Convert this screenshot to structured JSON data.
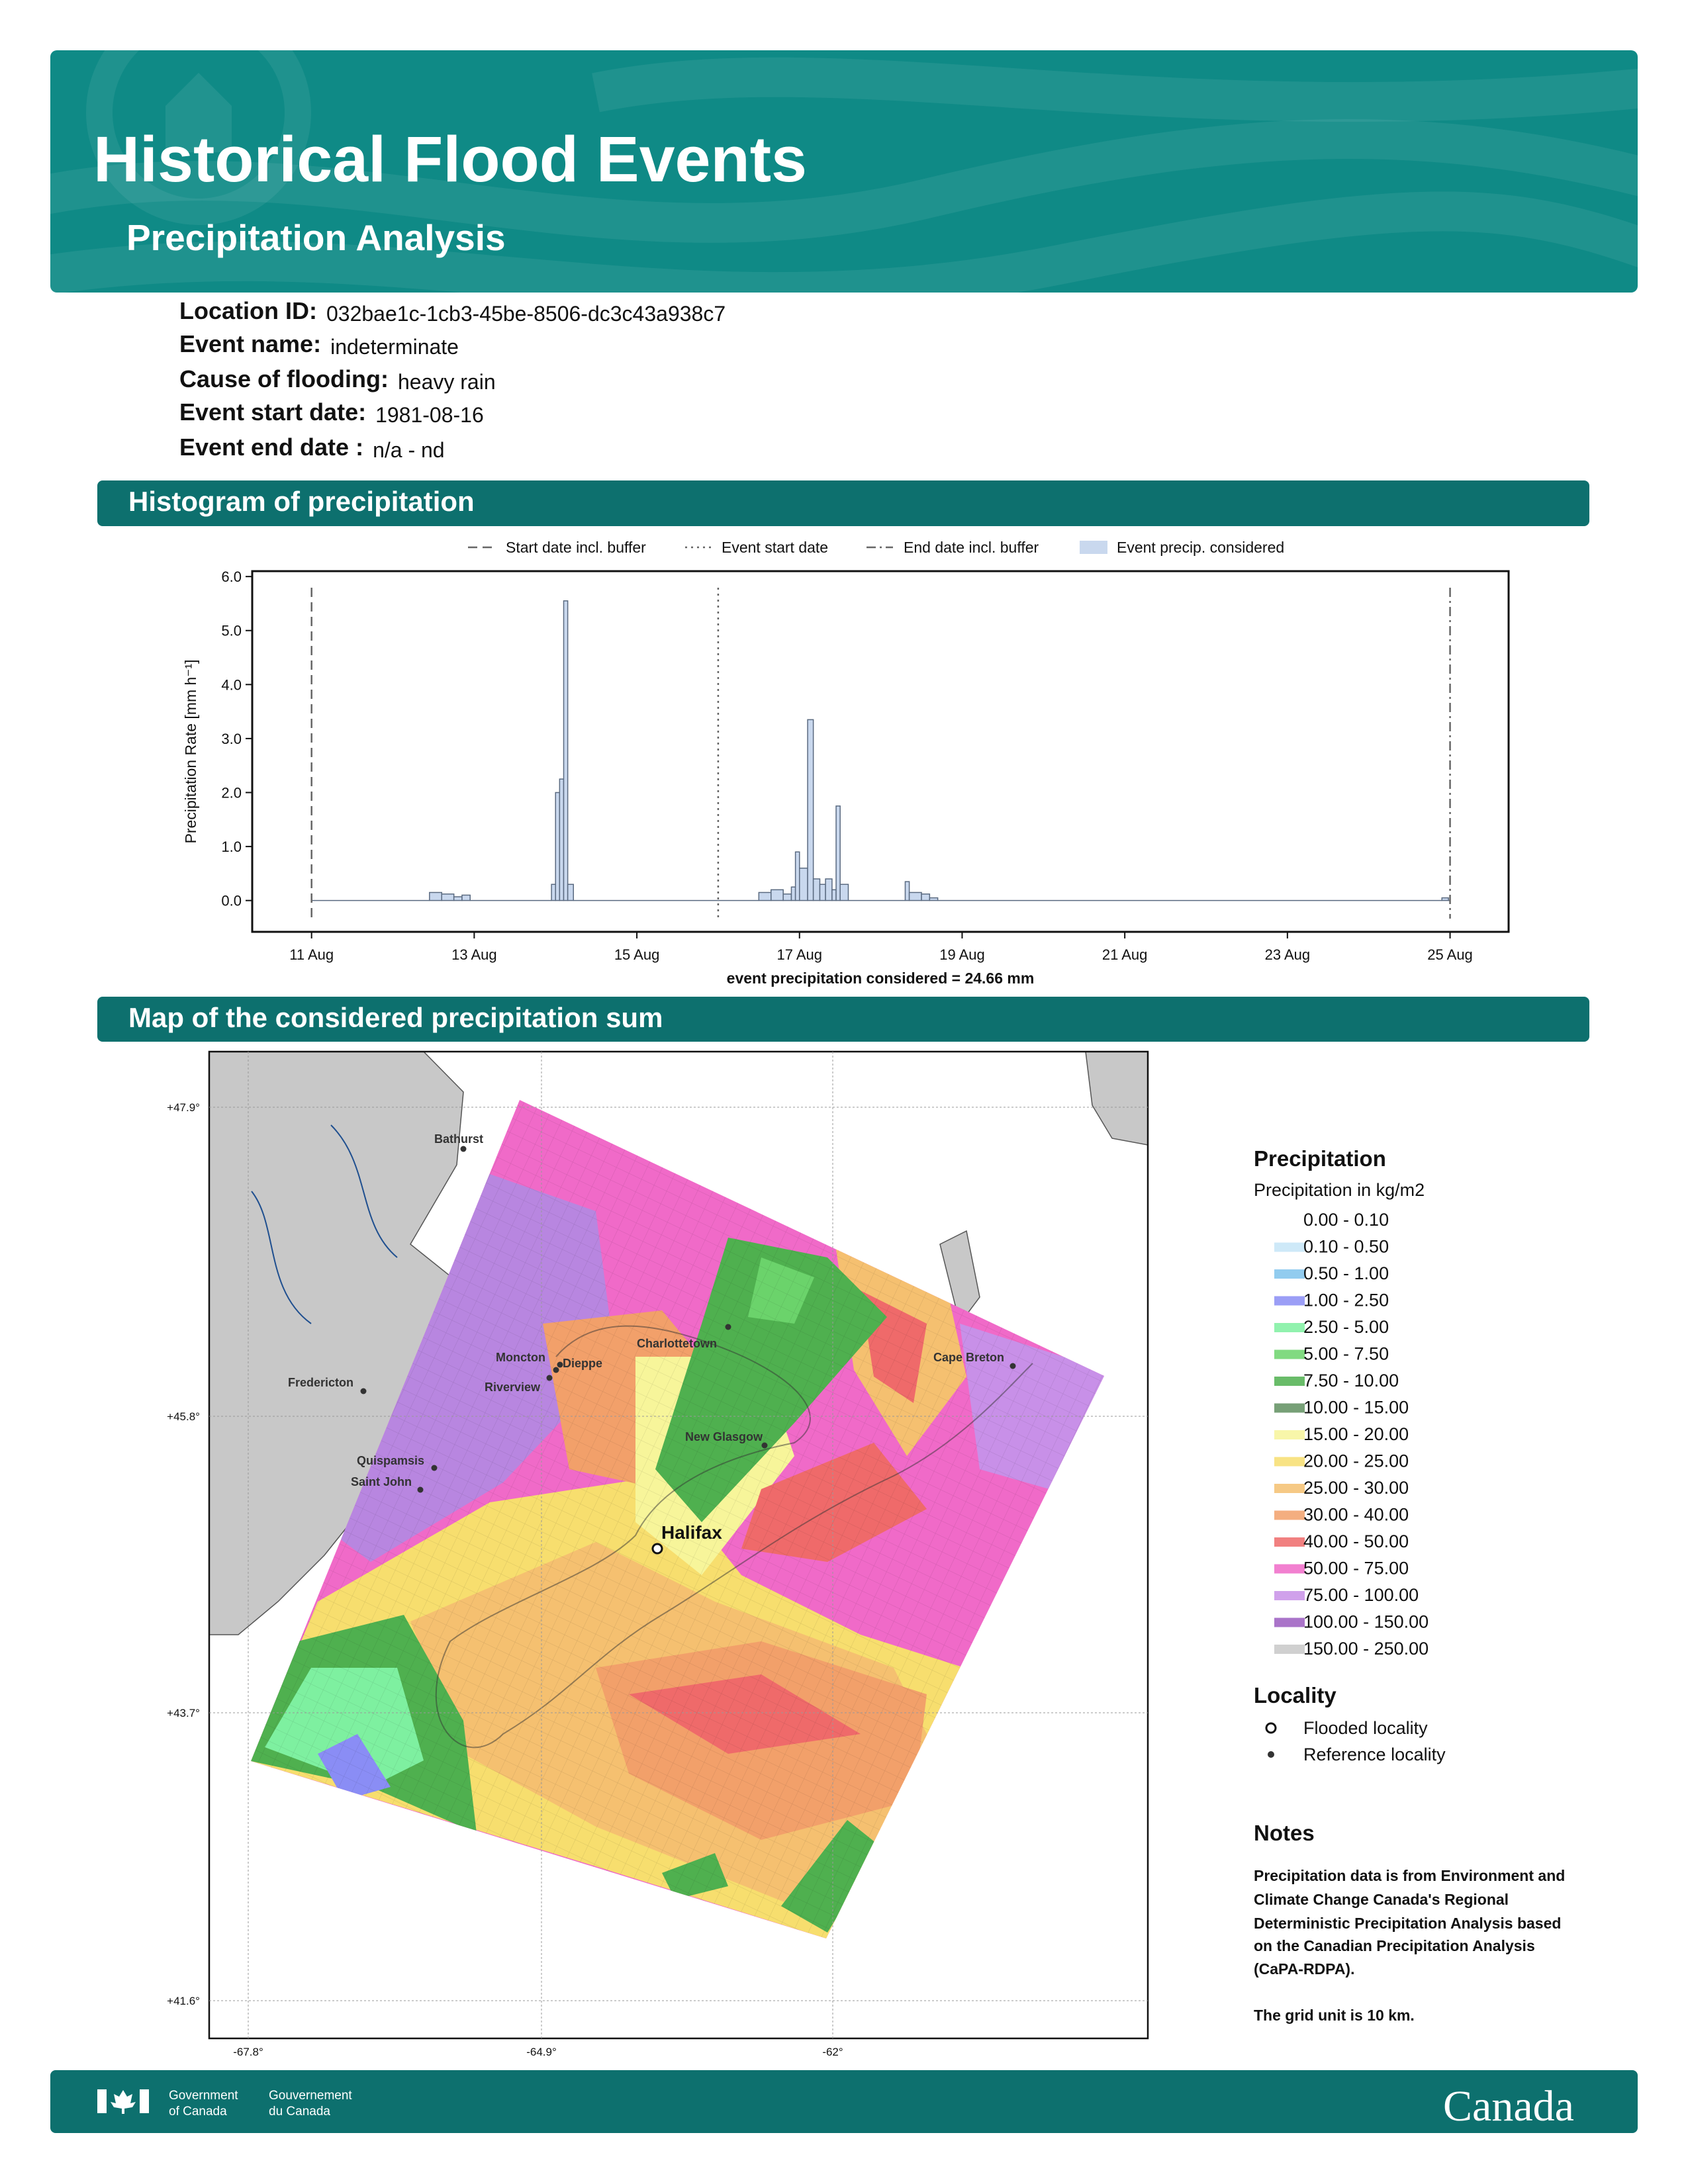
{
  "header": {
    "title": "Historical Flood Events",
    "subtitle": "Precipitation Analysis"
  },
  "event_info": [
    {
      "label": "Location ID:",
      "value": "032bae1c-1cb3-45be-8506-dc3c43a938c7"
    },
    {
      "label": "Event name:",
      "value": "indeterminate"
    },
    {
      "label": "Cause of flooding:",
      "value": "heavy rain"
    },
    {
      "label": "Event start date:",
      "value": "1981-08-16"
    },
    {
      "label": "Event end date :",
      "value": "n/a - nd"
    }
  ],
  "sections": [
    "Histogram of precipitation",
    "Map of the considered precipitation sum"
  ],
  "chart_data": {
    "type": "histogram",
    "ylabel": "Precipitation Rate [mm h⁻¹]",
    "xlabel": "event precipitation considered = 24.66 mm",
    "bins": [
      11,
      12.45,
      12.6,
      12.75,
      12.85,
      12.95,
      13.95,
      14.0,
      14.05,
      14.1,
      14.15,
      14.22,
      16.5,
      16.65,
      16.8,
      16.9,
      16.95,
      17.0,
      17.1,
      17.17,
      17.25,
      17.32,
      17.4,
      17.45,
      17.5,
      17.6,
      18.3,
      18.35,
      18.5,
      18.6,
      18.7,
      24.9,
      24.98,
      25
    ],
    "series": [
      {
        "name": "Event precip. considered",
        "color": "#c9d8ee",
        "values": [
          0,
          0.15,
          0.12,
          0.07,
          0.1,
          0,
          0.3,
          2.0,
          2.25,
          5.55,
          0.3,
          0,
          0.15,
          0.2,
          0.12,
          0.25,
          0.9,
          0.6,
          3.35,
          0.4,
          0.3,
          0.4,
          0.2,
          1.75,
          0.3,
          0,
          0.35,
          0.15,
          0.12,
          0.05,
          0,
          0.05,
          0
        ]
      }
    ],
    "markers": [
      {
        "name": "Start date incl. buffer",
        "x": 11,
        "style": "dashed"
      },
      {
        "name": "Event start date",
        "x": 16,
        "style": "dotted"
      },
      {
        "name": "End date incl. buffer",
        "x": 25,
        "style": "dashdot"
      }
    ],
    "xlim": [
      10.27,
      25.72
    ],
    "xticks": [
      {
        "value": 11,
        "label": "11 Aug"
      },
      {
        "value": 13,
        "label": "13 Aug"
      },
      {
        "value": 15,
        "label": "15 Aug"
      },
      {
        "value": 17,
        "label": "17 Aug"
      },
      {
        "value": 19,
        "label": "19 Aug"
      },
      {
        "value": 21,
        "label": "21 Aug"
      },
      {
        "value": 23,
        "label": "23 Aug"
      },
      {
        "value": 25,
        "label": "25 Aug"
      }
    ],
    "ylim": [
      -0.58,
      6.1
    ],
    "yticks": [
      {
        "value": 0,
        "label": "0.0"
      },
      {
        "value": 1,
        "label": "1.0"
      },
      {
        "value": 2,
        "label": "2.0"
      },
      {
        "value": 3,
        "label": "3.0"
      },
      {
        "value": 4,
        "label": "4.0"
      },
      {
        "value": 5,
        "label": "5.0"
      },
      {
        "value": 6,
        "label": "6.0"
      }
    ]
  },
  "map": {
    "lat_ticks": [
      "+47.9°",
      "+45.8°",
      "+43.7°",
      "+41.6°"
    ],
    "lon_ticks": [
      "-67.8°",
      "-64.9°",
      "-62°"
    ],
    "places": [
      "Bathurst",
      "Fredericton",
      "Moncton",
      "Dieppe",
      "Riverview",
      "Charlottetown",
      "Cape Breton",
      "New Glasgow",
      "Quispamsis",
      "Saint John",
      "Halifax"
    ],
    "legend_title": "Precipitation",
    "legend_subtitle": "Precipitation in kg/m2",
    "legend": [
      {
        "label": "0.00 - 0.10",
        "color": "#ffffff"
      },
      {
        "label": "0.10 - 0.50",
        "color": "#c6e5f7"
      },
      {
        "label": "0.50 - 1.00",
        "color": "#7fc3ec"
      },
      {
        "label": "1.00 - 2.50",
        "color": "#8a8df5"
      },
      {
        "label": "2.50 - 5.00",
        "color": "#7ef0a0"
      },
      {
        "label": "5.00 - 7.50",
        "color": "#6bd36b"
      },
      {
        "label": "7.50 - 10.00",
        "color": "#4fb04f"
      },
      {
        "label": "10.00 - 15.00",
        "color": "#5f8f5f"
      },
      {
        "label": "15.00 - 20.00",
        "color": "#f7f59a"
      },
      {
        "label": "20.00 - 25.00",
        "color": "#f7de6e"
      },
      {
        "label": "25.00 - 30.00",
        "color": "#f5c070"
      },
      {
        "label": "30.00 - 40.00",
        "color": "#f2a06a"
      },
      {
        "label": "40.00 - 50.00",
        "color": "#ef6a6a"
      },
      {
        "label": "50.00 - 75.00",
        "color": "#f06ac8"
      },
      {
        "label": "75.00 - 100.00",
        "color": "#c890e8"
      },
      {
        "label": "100.00 - 150.00",
        "color": "#9b5cc0"
      },
      {
        "label": "150.00 - 250.00",
        "color": "#c8c8c8"
      }
    ],
    "locality_title": "Locality",
    "locality": [
      "Flooded locality",
      "Reference locality"
    ]
  },
  "notes": {
    "title": "Notes",
    "lines": [
      "Precipitation data is from Environment and",
      "Climate Change Canada's Regional",
      "Deterministic Precipitation Analysis based",
      "on the Canadian Precipitation Analysis",
      "(CaPA-RDPA)."
    ],
    "grid": "The grid unit is 10 km."
  },
  "footer": {
    "gov_en": [
      "Government",
      "of Canada"
    ],
    "gov_fr": [
      "Gouvernement",
      "du Canada"
    ],
    "wordmark": "Canada"
  }
}
